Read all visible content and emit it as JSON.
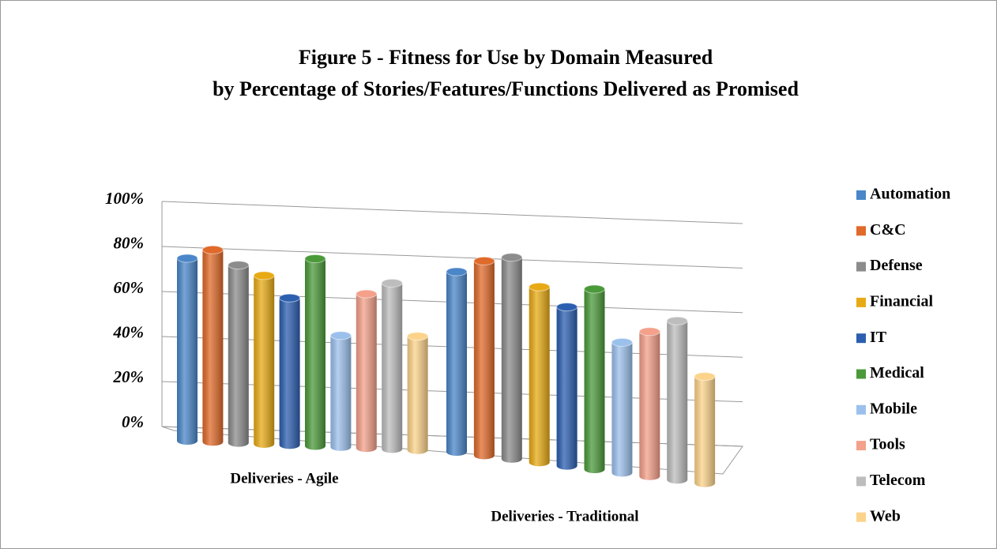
{
  "chart_data": {
    "type": "bar3d",
    "title": [
      "Figure 5 - Fitness for Use by Domain Measured",
      "by Percentage of Stories/Features/Functions Delivered as Promised"
    ],
    "categories": [
      "Deliveries - Agile",
      "Deliveries - Traditional"
    ],
    "series": [
      {
        "name": "Automation",
        "color": "#4a86c8",
        "values": [
          77,
          76
        ]
      },
      {
        "name": "C&C",
        "color": "#e06a2a",
        "values": [
          81,
          82
        ]
      },
      {
        "name": "Defense",
        "color": "#8c8c8c",
        "values": [
          75,
          85
        ]
      },
      {
        "name": "Financial",
        "color": "#e8aa14",
        "values": [
          71,
          74
        ]
      },
      {
        "name": "IT",
        "color": "#2c5fb0",
        "values": [
          62,
          67
        ]
      },
      {
        "name": "Medical",
        "color": "#4b9a3a",
        "values": [
          79,
          76
        ]
      },
      {
        "name": "Mobile",
        "color": "#9cc0ec",
        "values": [
          47,
          55
        ]
      },
      {
        "name": "Tools",
        "color": "#f4a08a",
        "values": [
          65,
          61
        ]
      },
      {
        "name": "Telecom",
        "color": "#bdbdbd",
        "values": [
          70,
          67
        ]
      },
      {
        "name": "Web",
        "color": "#fcd38a",
        "values": [
          48,
          45
        ]
      }
    ],
    "ylim": [
      0,
      100
    ],
    "yticks": [
      {
        "value": 0,
        "label": "0%"
      },
      {
        "value": 20,
        "label": "20%"
      },
      {
        "value": 40,
        "label": "40%"
      },
      {
        "value": 60,
        "label": "60%"
      },
      {
        "value": 80,
        "label": "80%"
      },
      {
        "value": 100,
        "label": "100%"
      }
    ],
    "grid": true,
    "legend": "right"
  }
}
